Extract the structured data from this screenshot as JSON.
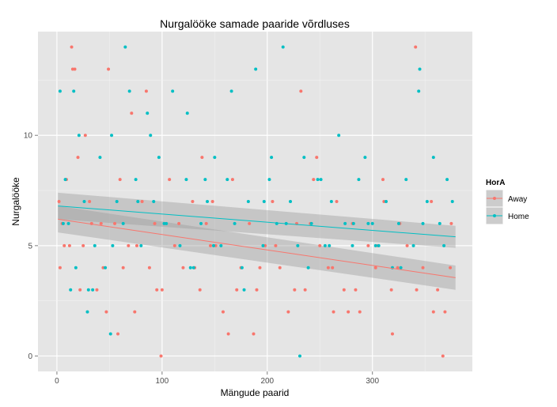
{
  "chart_data": {
    "type": "scatter",
    "title": "Nurgalööke samade paaride võrdluses",
    "xlabel": "Mängude paarid",
    "ylabel": "Nurgalööke",
    "xlim": [
      -18,
      395
    ],
    "ylim": [
      -0.7,
      14.7
    ],
    "xticks": [
      0,
      100,
      200,
      300
    ],
    "yticks": [
      0,
      5,
      10
    ],
    "grid": true,
    "legend": {
      "title": "HorA",
      "position": "right"
    },
    "series": [
      {
        "name": "Away",
        "color": "#F8766D",
        "trend": {
          "x0": 1,
          "y0": 6.2,
          "x1": 379,
          "y1": 3.55,
          "lower0": 5.6,
          "upper0": 6.8,
          "lower1": 3.0,
          "upper1": 4.1
        },
        "x": [
          2,
          5,
          9,
          14,
          17,
          20,
          25,
          31,
          38,
          44,
          49,
          55,
          60,
          68,
          74,
          81,
          88,
          93,
          100,
          107,
          112,
          120,
          129,
          136,
          142,
          151,
          158,
          167,
          175,
          183,
          190,
          198,
          205,
          212,
          220,
          228,
          236,
          244,
          250,
          258,
          266,
          273,
          281,
          288,
          296,
          303,
          311,
          318,
          326,
          333,
          341,
          348,
          356,
          362,
          369,
          375,
          3,
          12,
          22,
          33,
          47,
          63,
          76,
          95,
          116,
          131,
          146,
          171,
          193,
          208,
          226,
          241,
          262,
          284,
          305,
          324,
          342,
          358,
          374,
          7,
          27,
          58,
          99,
          138,
          187,
          232,
          277,
          319,
          367,
          15,
          42,
          85,
          163,
          247,
          310,
          71,
          148,
          263
        ],
        "y": [
          7,
          6,
          8,
          14,
          13,
          9,
          5,
          7,
          3,
          4,
          13,
          6,
          8,
          5,
          2,
          7,
          4,
          6,
          3,
          8,
          5,
          4,
          7,
          3,
          6,
          5,
          2,
          8,
          4,
          6,
          3,
          5,
          7,
          4,
          2,
          6,
          3,
          8,
          5,
          4,
          7,
          3,
          6,
          2,
          5,
          4,
          7,
          3,
          6,
          5,
          14,
          4,
          7,
          3,
          2,
          6,
          4,
          5,
          3,
          6,
          2,
          4,
          5,
          3,
          6,
          4,
          5,
          3,
          4,
          5,
          3,
          6,
          4,
          3,
          5,
          4,
          3,
          2,
          4,
          5,
          10,
          1,
          0,
          9,
          1,
          12,
          2,
          1,
          0,
          13,
          6,
          12,
          1,
          9,
          8,
          11,
          7,
          2
        ]
      },
      {
        "name": "Home",
        "color": "#00BFC4",
        "trend": {
          "x0": 1,
          "y0": 6.8,
          "x1": 379,
          "y1": 5.4,
          "lower0": 6.2,
          "upper0": 7.4,
          "lower1": 4.9,
          "upper1": 5.9
        },
        "x": [
          3,
          8,
          11,
          16,
          21,
          26,
          30,
          36,
          41,
          46,
          52,
          57,
          63,
          69,
          75,
          80,
          86,
          92,
          97,
          104,
          110,
          117,
          123,
          130,
          137,
          143,
          150,
          156,
          162,
          169,
          176,
          182,
          189,
          196,
          202,
          209,
          215,
          222,
          229,
          235,
          242,
          248,
          255,
          261,
          268,
          274,
          281,
          287,
          293,
          300,
          306,
          313,
          319,
          325,
          332,
          339,
          345,
          352,
          358,
          364,
          371,
          376,
          6,
          18,
          34,
          53,
          77,
          102,
          127,
          149,
          178,
          197,
          218,
          239,
          259,
          282,
          303,
          327,
          348,
          368,
          13,
          29,
          51,
          89,
          124,
          166,
          204,
          251,
          296,
          344,
          65,
          141,
          231
        ],
        "y": [
          12,
          8,
          6,
          12,
          10,
          7,
          3,
          5,
          9,
          4,
          10,
          7,
          6,
          12,
          8,
          5,
          11,
          7,
          9,
          6,
          12,
          5,
          8,
          4,
          6,
          7,
          9,
          5,
          8,
          6,
          4,
          7,
          13,
          5,
          8,
          6,
          14,
          7,
          5,
          9,
          6,
          8,
          5,
          7,
          10,
          6,
          5,
          8,
          9,
          6,
          5,
          7,
          4,
          6,
          8,
          5,
          13,
          7,
          9,
          6,
          8,
          7,
          6,
          4,
          3,
          5,
          7,
          6,
          4,
          5,
          3,
          7,
          6,
          4,
          5,
          6,
          5,
          4,
          6,
          5,
          3,
          2,
          1,
          10,
          11,
          12,
          9,
          8,
          6,
          12,
          14,
          8,
          0
        ]
      }
    ]
  }
}
